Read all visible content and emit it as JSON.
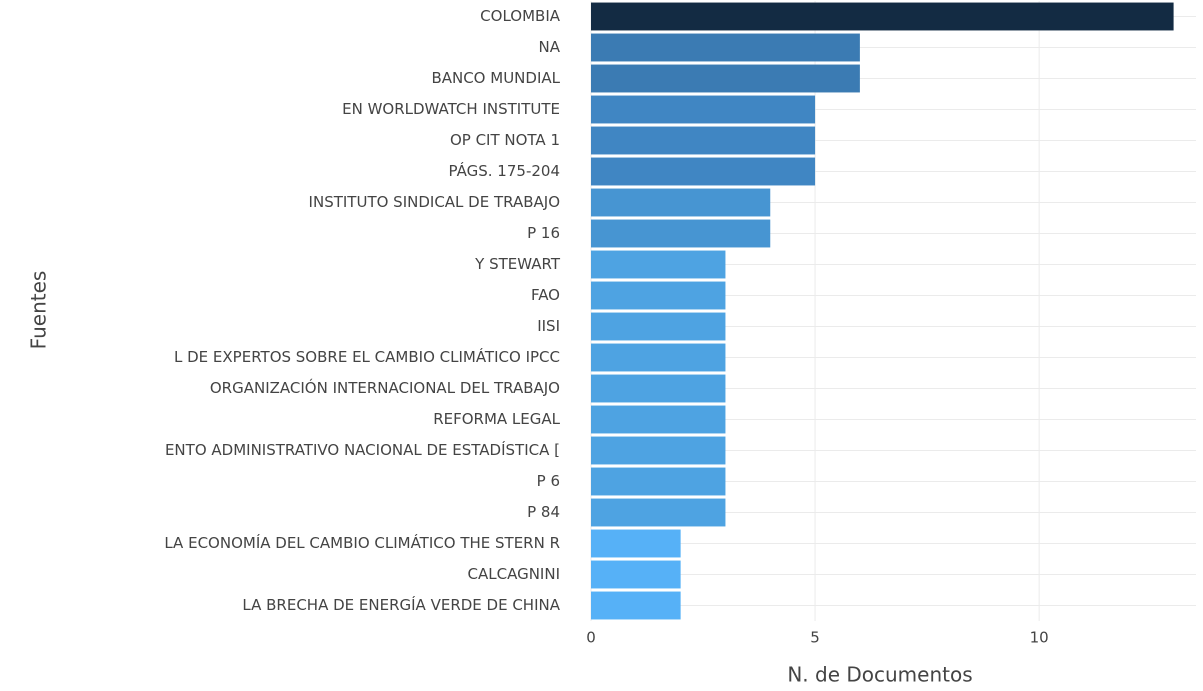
{
  "chart_data": {
    "type": "bar",
    "orientation": "horizontal",
    "x_label": "N. de Documentos",
    "y_label": "Fuentes",
    "categories": [
      "COLOMBIA",
      "NA",
      "BANCO MUNDIAL",
      "EN WORLDWATCH INSTITUTE",
      "OP CIT NOTA 1",
      "PÁGS. 175-204",
      "INSTITUTO SINDICAL DE TRABAJO",
      "P 16",
      "Y STEWART",
      "FAO",
      "IISI",
      "L DE EXPERTOS SOBRE EL CAMBIO CLIMÁTICO IPCC",
      "ORGANIZACIÓN INTERNACIONAL DEL TRABAJO",
      "REFORMA LEGAL",
      "ENTO ADMINISTRATIVO NACIONAL DE ESTADÍSTICA [",
      "P 6",
      "P 84",
      "LA ECONOMÍA DEL CAMBIO CLIMÁTICO THE STERN R",
      "CALCAGNINI",
      "LA BRECHA DE ENERGÍA VERDE DE CHINA"
    ],
    "values": [
      13,
      6,
      6,
      5,
      5,
      5,
      4,
      4,
      3,
      3,
      3,
      3,
      3,
      3,
      3,
      3,
      3,
      2,
      2,
      2
    ],
    "colors": [
      "#132b43",
      "#3b7bb3",
      "#3b7bb3",
      "#4086c3",
      "#4086c3",
      "#4086c3",
      "#4795d2",
      "#4795d2",
      "#4ea3e2",
      "#4ea3e2",
      "#4ea3e2",
      "#4ea3e2",
      "#4ea3e2",
      "#4ea3e2",
      "#4ea3e2",
      "#4ea3e2",
      "#4ea3e2",
      "#56b1f7",
      "#56b1f7",
      "#56b1f7"
    ],
    "xlim": [
      0,
      13.5
    ],
    "xticks": [
      0,
      5,
      10
    ],
    "grid": true
  }
}
